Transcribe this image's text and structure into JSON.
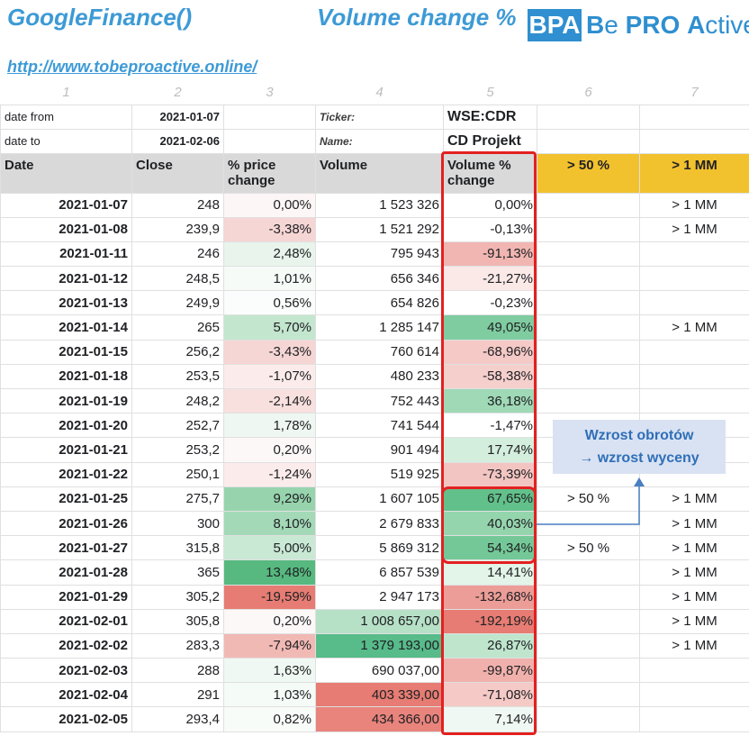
{
  "header": {
    "title_left": "GoogleFinance()",
    "title_right": "Volume change %",
    "logo_abbr": "BPA",
    "logo_text_parts": [
      "B",
      "e ",
      "PRO",
      " ",
      "A",
      "ctive"
    ],
    "link": "http://www.tobeproactive.online/"
  },
  "column_numbers": [
    "1",
    "2",
    "3",
    "4",
    "5",
    "6",
    "7"
  ],
  "meta": {
    "date_from_label": "date from",
    "date_from_value": "2021-01-07",
    "date_to_label": "date to",
    "date_to_value": "2021-02-06",
    "ticker_label": "Ticker:",
    "ticker_value": "WSE:CDR",
    "name_label": "Name:",
    "name_value": "CD Projekt"
  },
  "table_headers": [
    "Date",
    "Close",
    "% price change",
    "Volume",
    "Volume % change",
    "> 50 %",
    "> 1 MM"
  ],
  "rows": [
    {
      "date": "2021-01-07",
      "close": "248",
      "price_chg": "0,00%",
      "volume": "1 523 326",
      "vol_chg": "0,00%",
      "gt50": "",
      "gt1mm": "> 1 MM",
      "pc_color": "#fdf6f6",
      "vc_color": "#ffffff",
      "vol_color": "#ffffff"
    },
    {
      "date": "2021-01-08",
      "close": "239,9",
      "price_chg": "-3,38%",
      "volume": "1 521 292",
      "vol_chg": "-0,13%",
      "gt50": "",
      "gt1mm": "> 1 MM",
      "pc_color": "#f6d6d4",
      "vc_color": "#ffffff",
      "vol_color": "#ffffff"
    },
    {
      "date": "2021-01-11",
      "close": "246",
      "price_chg": "2,48%",
      "volume": "795 943",
      "vol_chg": "-91,13%",
      "gt50": "",
      "gt1mm": "",
      "pc_color": "#e8f4ec",
      "vc_color": "#f1b6b2",
      "vol_color": "#ffffff"
    },
    {
      "date": "2021-01-12",
      "close": "248,5",
      "price_chg": "1,01%",
      "volume": "656 346",
      "vol_chg": "-21,27%",
      "gt50": "",
      "gt1mm": "",
      "pc_color": "#f6fbf8",
      "vc_color": "#fbe9e8",
      "vol_color": "#ffffff"
    },
    {
      "date": "2021-01-13",
      "close": "249,9",
      "price_chg": "0,56%",
      "volume": "654 826",
      "vol_chg": "-0,23%",
      "gt50": "",
      "gt1mm": "",
      "pc_color": "#fafdfb",
      "vc_color": "#ffffff",
      "vol_color": "#ffffff"
    },
    {
      "date": "2021-01-14",
      "close": "265",
      "price_chg": "5,70%",
      "volume": "1 285 147",
      "vol_chg": "49,05%",
      "gt50": "",
      "gt1mm": "> 1 MM",
      "pc_color": "#c3e6cf",
      "vc_color": "#7fcca0",
      "vol_color": "#ffffff"
    },
    {
      "date": "2021-01-15",
      "close": "256,2",
      "price_chg": "-3,43%",
      "volume": "760 614",
      "vol_chg": "-68,96%",
      "gt50": "",
      "gt1mm": "",
      "pc_color": "#f6d6d4",
      "vc_color": "#f4c9c6",
      "vol_color": "#ffffff"
    },
    {
      "date": "2021-01-18",
      "close": "253,5",
      "price_chg": "-1,07%",
      "volume": "480 233",
      "vol_chg": "-58,38%",
      "gt50": "",
      "gt1mm": "",
      "pc_color": "#fbeceb",
      "vc_color": "#f5cfcc",
      "vol_color": "#ffffff"
    },
    {
      "date": "2021-01-19",
      "close": "248,2",
      "price_chg": "-2,14%",
      "volume": "752 443",
      "vol_chg": "36,18%",
      "gt50": "",
      "gt1mm": "",
      "pc_color": "#f8e0de",
      "vc_color": "#9fd9b6",
      "vol_color": "#ffffff"
    },
    {
      "date": "2021-01-20",
      "close": "252,7",
      "price_chg": "1,78%",
      "volume": "741 544",
      "vol_chg": "-1,47%",
      "gt50": "",
      "gt1mm": "",
      "pc_color": "#eef7f1",
      "vc_color": "#ffffff",
      "vol_color": "#ffffff"
    },
    {
      "date": "2021-01-21",
      "close": "253,2",
      "price_chg": "0,20%",
      "volume": "901 494",
      "vol_chg": "17,74%",
      "gt50": "",
      "gt1mm": "",
      "pc_color": "#fdf8f8",
      "vc_color": "#d4eedd",
      "vol_color": "#ffffff"
    },
    {
      "date": "2021-01-22",
      "close": "250,1",
      "price_chg": "-1,24%",
      "volume": "519 925",
      "vol_chg": "-73,39%",
      "gt50": "",
      "gt1mm": "",
      "pc_color": "#fbeceb",
      "vc_color": "#f3c5c2",
      "vol_color": "#ffffff"
    },
    {
      "date": "2021-01-25",
      "close": "275,7",
      "price_chg": "9,29%",
      "volume": "1 607 105",
      "vol_chg": "67,65%",
      "gt50": "> 50 %",
      "gt1mm": "> 1 MM",
      "pc_color": "#97d4ae",
      "vc_color": "#62c08a",
      "vol_color": "#ffffff"
    },
    {
      "date": "2021-01-26",
      "close": "300",
      "price_chg": "8,10%",
      "volume": "2 679 833",
      "vol_chg": "40,03%",
      "gt50": "",
      "gt1mm": "> 1 MM",
      "pc_color": "#a4d9b8",
      "vc_color": "#95d5ae",
      "vol_color": "#ffffff"
    },
    {
      "date": "2021-01-27",
      "close": "315,8",
      "price_chg": "5,00%",
      "volume": "5 869 312",
      "vol_chg": "54,34%",
      "gt50": "> 50 %",
      "gt1mm": "> 1 MM",
      "pc_color": "#c9e9d4",
      "vc_color": "#74c897",
      "vol_color": "#ffffff"
    },
    {
      "date": "2021-01-28",
      "close": "365",
      "price_chg": "13,48%",
      "volume": "6 857 539",
      "vol_chg": "14,41%",
      "gt50": "",
      "gt1mm": "> 1 MM",
      "pc_color": "#57b97f",
      "vc_color": "#e3f4e9",
      "vol_color": "#ffffff"
    },
    {
      "date": "2021-01-29",
      "close": "305,2",
      "price_chg": "-19,59%",
      "volume": "2 947 173",
      "vol_chg": "-132,68%",
      "gt50": "",
      "gt1mm": "> 1 MM",
      "pc_color": "#e67c73",
      "vc_color": "#ec9d97",
      "vol_color": "#ffffff"
    },
    {
      "date": "2021-02-01",
      "close": "305,8",
      "price_chg": "0,20%",
      "volume": "1 008 657,00",
      "vol_chg": "-192,19%",
      "gt50": "",
      "gt1mm": "> 1 MM",
      "pc_color": "#fdf8f8",
      "vc_color": "#e67c73",
      "vol_color": "#b7e1c7",
      "close_small": true,
      "vol_small": true
    },
    {
      "date": "2021-02-02",
      "close": "283,3",
      "price_chg": "-7,94%",
      "volume": "1 379 193,00",
      "vol_chg": "26,87%",
      "gt50": "",
      "gt1mm": "> 1 MM",
      "pc_color": "#f1b9b4",
      "vc_color": "#bfe5cd",
      "vol_color": "#57bb8a",
      "close_small": true,
      "vol_small": true
    },
    {
      "date": "2021-02-03",
      "close": "288",
      "price_chg": "1,63%",
      "volume": "690 037,00",
      "vol_chg": "-99,87%",
      "gt50": "",
      "gt1mm": "",
      "pc_color": "#eff8f2",
      "vc_color": "#f0b1ac",
      "vol_color": "#ffffff",
      "close_small": true,
      "vol_small": true
    },
    {
      "date": "2021-02-04",
      "close": "291",
      "price_chg": "1,03%",
      "volume": "403 339,00",
      "vol_chg": "-71,08%",
      "gt50": "",
      "gt1mm": "",
      "pc_color": "#f5fbf7",
      "vc_color": "#f4c9c6",
      "vol_color": "#e67c73",
      "close_small": true,
      "vol_small": true
    },
    {
      "date": "2021-02-05",
      "close": "293,4",
      "price_chg": "0,82%",
      "volume": "434 366,00",
      "vol_chg": "7,14%",
      "gt50": "",
      "gt1mm": "",
      "pc_color": "#f8fcf9",
      "vc_color": "#eff8f2",
      "vol_color": "#e8847c",
      "close_small": true,
      "vol_small": true
    }
  ],
  "callout": {
    "line1": "Wzrost obrotów",
    "line2": "→ wzrost wyceny"
  },
  "colors": {
    "title_blue": "#3d9ad6",
    "gold_header": "#f2c12e",
    "highlight_red": "#e32020",
    "callout_bg": "#d9e2f2",
    "callout_text": "#2f6fb8"
  }
}
